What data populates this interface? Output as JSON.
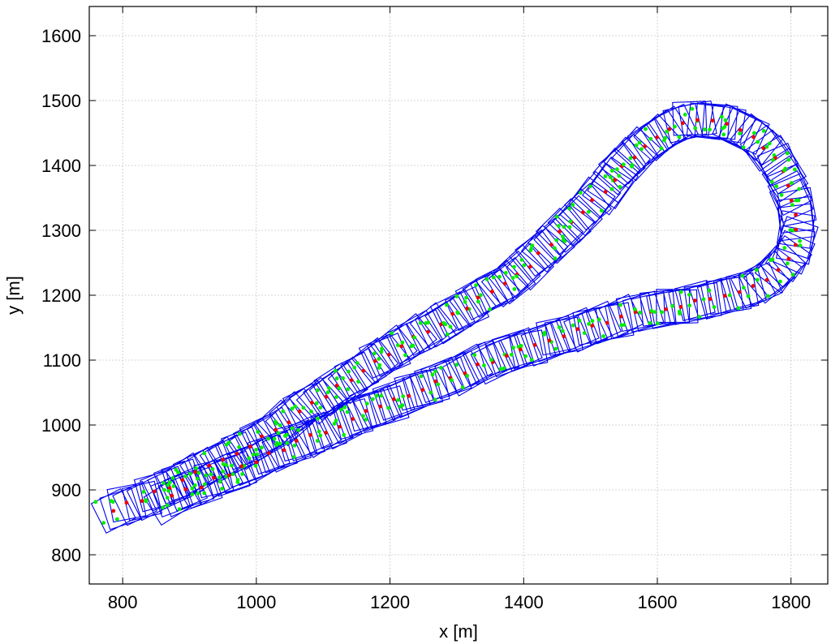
{
  "chart_data": {
    "type": "scatter",
    "xlabel": "x [m]",
    "ylabel": "y [m]",
    "xlim": [
      750,
      1855
    ],
    "ylim": [
      755,
      1645
    ],
    "xticks": [
      800,
      1000,
      1200,
      1400,
      1600,
      1800
    ],
    "yticks": [
      800,
      900,
      1000,
      1100,
      1200,
      1300,
      1400,
      1500,
      1600
    ],
    "grid": true,
    "colors": {
      "box": "#0000ee",
      "center": "#ee0000",
      "feature": "#00ee00"
    },
    "series": [
      {
        "type": "oriented-squares",
        "box_size_m": 50,
        "path": [
          [
            780,
            868
          ],
          [
            850,
            895
          ],
          [
            920,
            930
          ],
          [
            1000,
            975
          ],
          [
            1080,
            1030
          ],
          [
            1160,
            1085
          ],
          [
            1240,
            1135
          ],
          [
            1320,
            1185
          ],
          [
            1400,
            1240
          ],
          [
            1460,
            1300
          ],
          [
            1510,
            1350
          ],
          [
            1560,
            1410
          ],
          [
            1620,
            1460
          ],
          [
            1690,
            1470
          ],
          [
            1750,
            1440
          ],
          [
            1790,
            1380
          ],
          [
            1810,
            1310
          ],
          [
            1790,
            1250
          ],
          [
            1740,
            1210
          ],
          [
            1660,
            1190
          ],
          [
            1580,
            1175
          ],
          [
            1500,
            1150
          ],
          [
            1420,
            1125
          ],
          [
            1340,
            1095
          ],
          [
            1260,
            1060
          ],
          [
            1180,
            1025
          ],
          [
            1100,
            990
          ],
          [
            1020,
            955
          ],
          [
            960,
            925
          ],
          [
            900,
            900
          ],
          [
            860,
            880
          ]
        ]
      }
    ]
  }
}
